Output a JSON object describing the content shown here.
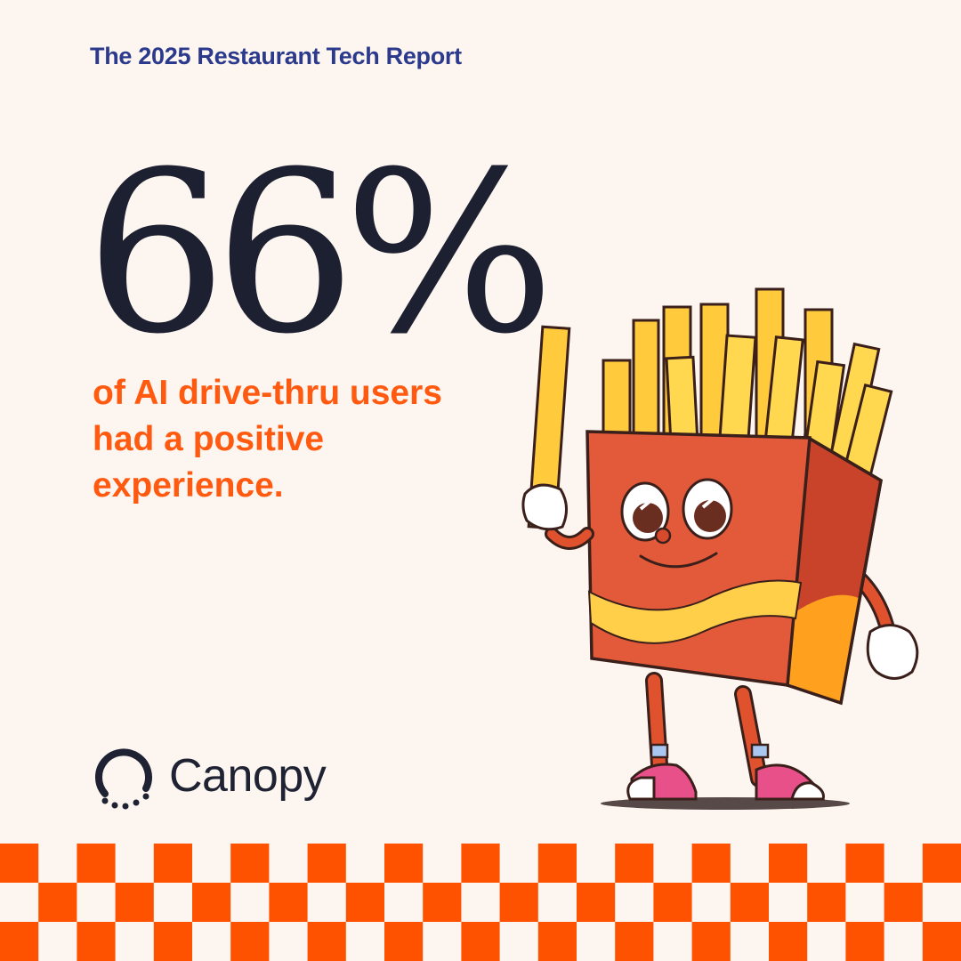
{
  "header": {
    "title": "The 2025 Restaurant Tech Report"
  },
  "stat": {
    "value": "66%",
    "caption_lines": [
      "of AI drive-thru users",
      "had a positive",
      "experience."
    ]
  },
  "brand": {
    "name": "Canopy"
  },
  "colors": {
    "background": "#FDF5EF",
    "title": "#2B3A8C",
    "stat": "#1C2030",
    "accent": "#FF5A10",
    "checker": "#FF5200"
  },
  "illustration": {
    "name": "french-fries-mascot-icon"
  }
}
